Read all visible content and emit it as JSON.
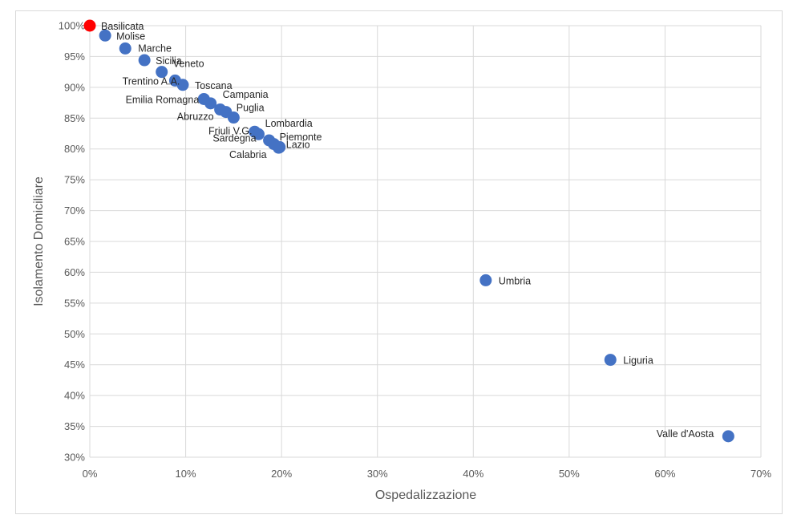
{
  "chart_data": {
    "type": "scatter",
    "xlabel": "Ospedalizzazione",
    "ylabel": "Isolamento Domiciliare",
    "xlim": [
      0,
      0.7
    ],
    "ylim": [
      0.3,
      1.0
    ],
    "x_ticks": [
      0,
      0.1,
      0.2,
      0.3,
      0.4,
      0.5,
      0.6,
      0.7
    ],
    "x_tick_labels": [
      "0%",
      "10%",
      "20%",
      "30%",
      "40%",
      "50%",
      "60%",
      "70%"
    ],
    "y_ticks": [
      0.3,
      0.35,
      0.4,
      0.45,
      0.5,
      0.55,
      0.6,
      0.65,
      0.7,
      0.75,
      0.8,
      0.85,
      0.9,
      0.95,
      1.0
    ],
    "y_tick_labels": [
      "30%",
      "35%",
      "40%",
      "45%",
      "50%",
      "55%",
      "60%",
      "65%",
      "70%",
      "75%",
      "80%",
      "85%",
      "90%",
      "95%",
      "100%"
    ],
    "grid": true,
    "colors": {
      "default": "#4472c4",
      "highlight": "#ff0000"
    },
    "points": [
      {
        "label": "Basilicata",
        "x": 0.0,
        "y": 1.0,
        "highlight": true
      },
      {
        "label": "Molise",
        "x": 0.016,
        "y": 0.984
      },
      {
        "label": "Marche",
        "x": 0.037,
        "y": 0.963
      },
      {
        "label": "Sicilia",
        "x": 0.057,
        "y": 0.944
      },
      {
        "label": "Trentino A.A.",
        "x": 0.089,
        "y": 0.911
      },
      {
        "label": "Veneto",
        "x": 0.075,
        "y": 0.925
      },
      {
        "label": "Toscana",
        "x": 0.097,
        "y": 0.904
      },
      {
        "label": "Emilia Romagna",
        "x": 0.119,
        "y": 0.881
      },
      {
        "label": "Campania",
        "x": 0.126,
        "y": 0.874
      },
      {
        "label": "Abruzzo",
        "x": 0.136,
        "y": 0.864
      },
      {
        "label": "Puglia",
        "x": 0.142,
        "y": 0.86
      },
      {
        "label": "",
        "x": 0.15,
        "y": 0.851
      },
      {
        "label": "Lombardia",
        "x": 0.172,
        "y": 0.828
      },
      {
        "label": "Friuli V.G.",
        "x": 0.176,
        "y": 0.824
      },
      {
        "label": "Piemonte",
        "x": 0.187,
        "y": 0.814
      },
      {
        "label": "Sardegna",
        "x": 0.192,
        "y": 0.808
      },
      {
        "label": "Lazio",
        "x": 0.198,
        "y": 0.803
      },
      {
        "label": "Calabria",
        "x": 0.197,
        "y": 0.802
      },
      {
        "label": "Umbria",
        "x": 0.413,
        "y": 0.587
      },
      {
        "label": "Liguria",
        "x": 0.543,
        "y": 0.458
      },
      {
        "label": "Valle d'Aosta",
        "x": 0.666,
        "y": 0.334
      }
    ]
  }
}
